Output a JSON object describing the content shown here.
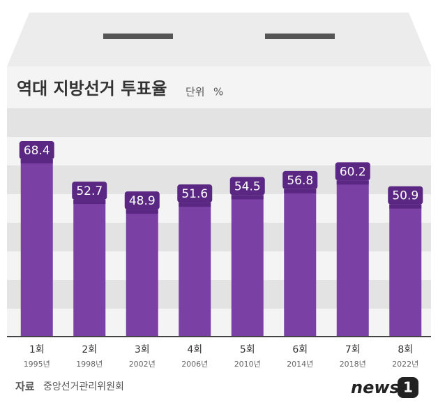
{
  "chart_data": {
    "type": "bar",
    "title": "역대 지방선거 투표율",
    "unit_label": "단위",
    "unit": "%",
    "categories": [
      "1회",
      "2회",
      "3회",
      "4회",
      "5회",
      "6회",
      "7회",
      "8회"
    ],
    "years": [
      "1995년",
      "1998년",
      "2002년",
      "2006년",
      "2010년",
      "2014년",
      "2018년",
      "2022년"
    ],
    "values": [
      68.4,
      52.7,
      48.9,
      51.6,
      54.5,
      56.8,
      60.2,
      50.9
    ],
    "color": "#7b40a3",
    "label_color": "#5a2782",
    "source_label": "자료",
    "source": "중앙선거관리위원회",
    "brand": "news",
    "brand_mark": "1"
  }
}
